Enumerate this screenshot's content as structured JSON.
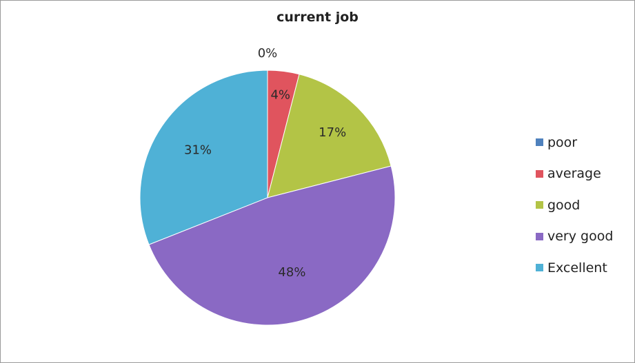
{
  "chart_data": {
    "type": "pie",
    "title": "current job",
    "start_angle_deg": 0,
    "direction": "clockwise",
    "legend_position": "right",
    "slices": [
      {
        "label": "poor",
        "value": 0,
        "display": "0%",
        "color": "#4f81bd"
      },
      {
        "label": "average",
        "value": 4,
        "display": "4%",
        "color": "#e0545e"
      },
      {
        "label": "good",
        "value": 17,
        "display": "17%",
        "color": "#b3c446"
      },
      {
        "label": "very good",
        "value": 48,
        "display": "48%",
        "color": "#8a69c4"
      },
      {
        "label": "Excellent",
        "value": 31,
        "display": "31%",
        "color": "#4fb1d6"
      }
    ]
  }
}
